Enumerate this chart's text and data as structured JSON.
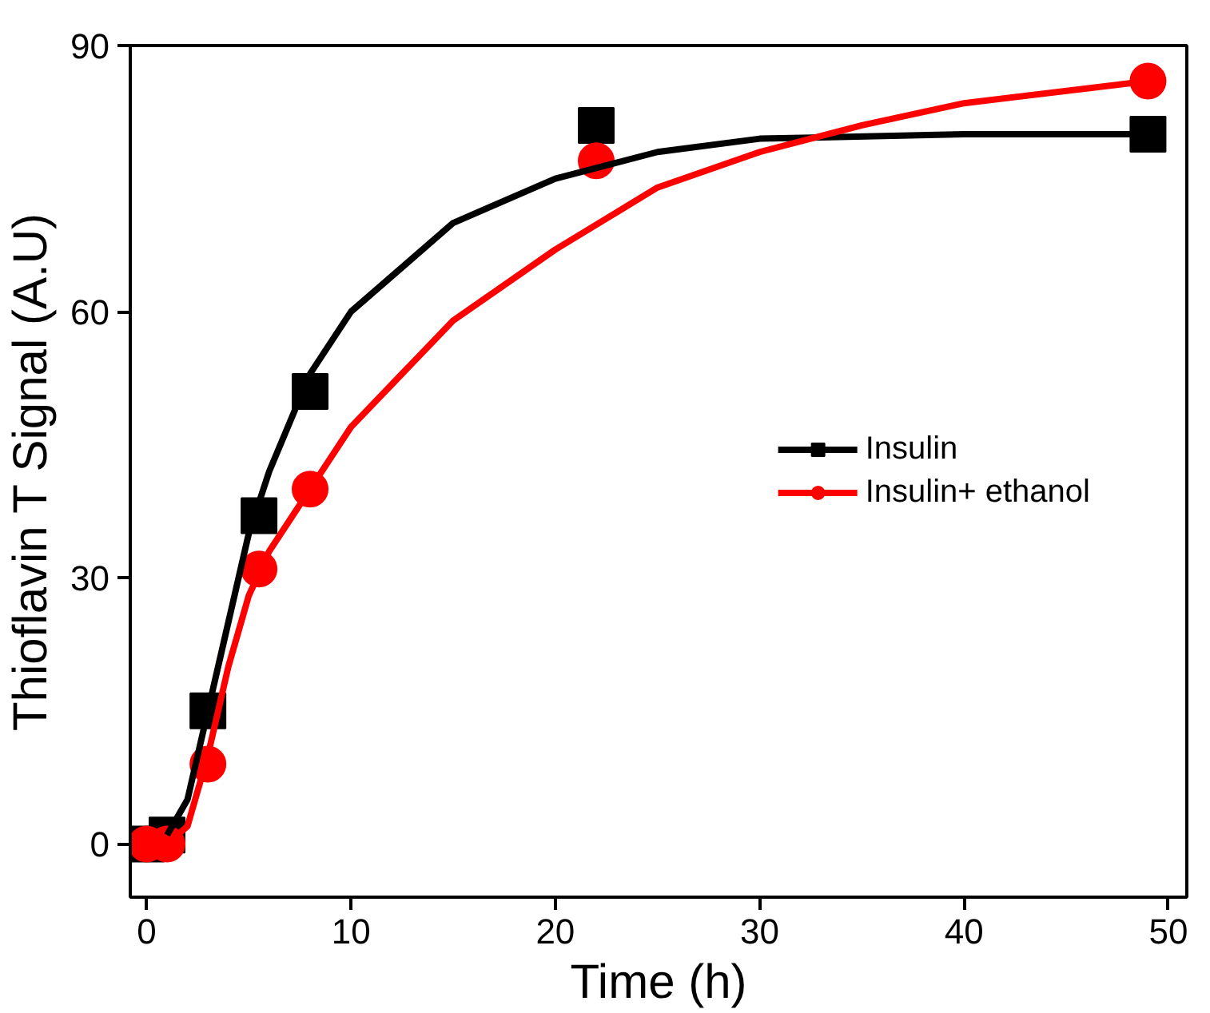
{
  "chart_data": {
    "type": "scatter",
    "xlabel": "Time (h)",
    "ylabel": "Thioflavin T Signal (A.U)",
    "xlim": [
      -0.8,
      50.9
    ],
    "ylim": [
      -6,
      90
    ],
    "xticks": [
      0,
      10,
      20,
      30,
      40,
      50
    ],
    "yticks": [
      0,
      30,
      60,
      90
    ],
    "grid": false,
    "legend": "right",
    "series": [
      {
        "name": "Insulin",
        "color": "#000000",
        "marker": "square",
        "x": [
          0,
          1,
          3,
          5.5,
          8,
          22,
          49
        ],
        "values": [
          0,
          1,
          15,
          37,
          51,
          81,
          80
        ]
      },
      {
        "name": "Insulin+ ethanol",
        "color": "#ff0000",
        "marker": "circle",
        "x": [
          0,
          1,
          3,
          5.5,
          8,
          22,
          49
        ],
        "values": [
          0,
          0,
          9,
          31,
          40,
          77,
          86
        ]
      },
      {
        "type": "line",
        "marker": "none",
        "color": "#000000",
        "x": [
          1,
          2,
          3,
          4,
          5,
          6,
          8,
          10,
          15,
          20,
          25,
          30,
          40,
          49
        ],
        "values": [
          1,
          5,
          15,
          25,
          35,
          42,
          53,
          60,
          70,
          75,
          78,
          79.5,
          80,
          80
        ]
      },
      {
        "type": "line",
        "marker": "none",
        "color": "#ff0000",
        "x": [
          1,
          2,
          3,
          4,
          5,
          6,
          8,
          10,
          15,
          20,
          25,
          30,
          35,
          40,
          49
        ],
        "values": [
          0,
          2,
          10,
          20,
          28,
          33,
          40,
          47,
          59,
          67,
          74,
          78,
          81,
          83.5,
          86
        ]
      }
    ]
  }
}
